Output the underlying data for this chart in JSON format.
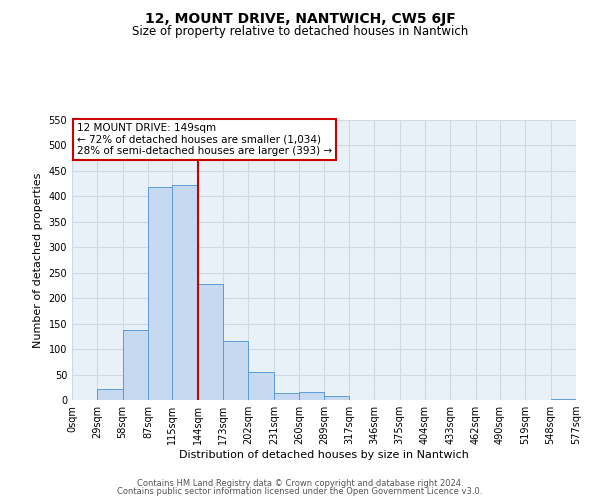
{
  "title": "12, MOUNT DRIVE, NANTWICH, CW5 6JF",
  "subtitle": "Size of property relative to detached houses in Nantwich",
  "xlabel": "Distribution of detached houses by size in Nantwich",
  "ylabel": "Number of detached properties",
  "bin_edges": [
    0,
    29,
    58,
    87,
    115,
    144,
    173,
    202,
    231,
    260,
    289,
    317,
    346,
    375,
    404,
    433,
    462,
    490,
    519,
    548,
    577
  ],
  "bin_heights": [
    0,
    22,
    138,
    418,
    422,
    228,
    116,
    55,
    13,
    16,
    7,
    0,
    0,
    0,
    0,
    0,
    0,
    0,
    0,
    2
  ],
  "tick_labels": [
    "0sqm",
    "29sqm",
    "58sqm",
    "87sqm",
    "115sqm",
    "144sqm",
    "173sqm",
    "202sqm",
    "231sqm",
    "260sqm",
    "289sqm",
    "317sqm",
    "346sqm",
    "375sqm",
    "404sqm",
    "433sqm",
    "462sqm",
    "490sqm",
    "519sqm",
    "548sqm",
    "577sqm"
  ],
  "bar_color": "#c6d9f0",
  "bar_edge_color": "#5b9bd5",
  "grid_color": "#d0d8e4",
  "property_line_color": "#cc0000",
  "annotation_line1": "12 MOUNT DRIVE: 149sqm",
  "annotation_line2": "← 72% of detached houses are smaller (1,034)",
  "annotation_line3": "28% of semi-detached houses are larger (393) →",
  "annotation_box_color": "#cc0000",
  "ylim": [
    0,
    550
  ],
  "yticks": [
    0,
    50,
    100,
    150,
    200,
    250,
    300,
    350,
    400,
    450,
    500,
    550
  ],
  "footer1": "Contains HM Land Registry data © Crown copyright and database right 2024.",
  "footer2": "Contains public sector information licensed under the Open Government Licence v3.0.",
  "background_color": "#e8f0f8",
  "title_fontsize": 10,
  "subtitle_fontsize": 8.5,
  "xlabel_fontsize": 8,
  "ylabel_fontsize": 8,
  "tick_fontsize": 7,
  "annotation_fontsize": 7.5,
  "footer_fontsize": 6
}
